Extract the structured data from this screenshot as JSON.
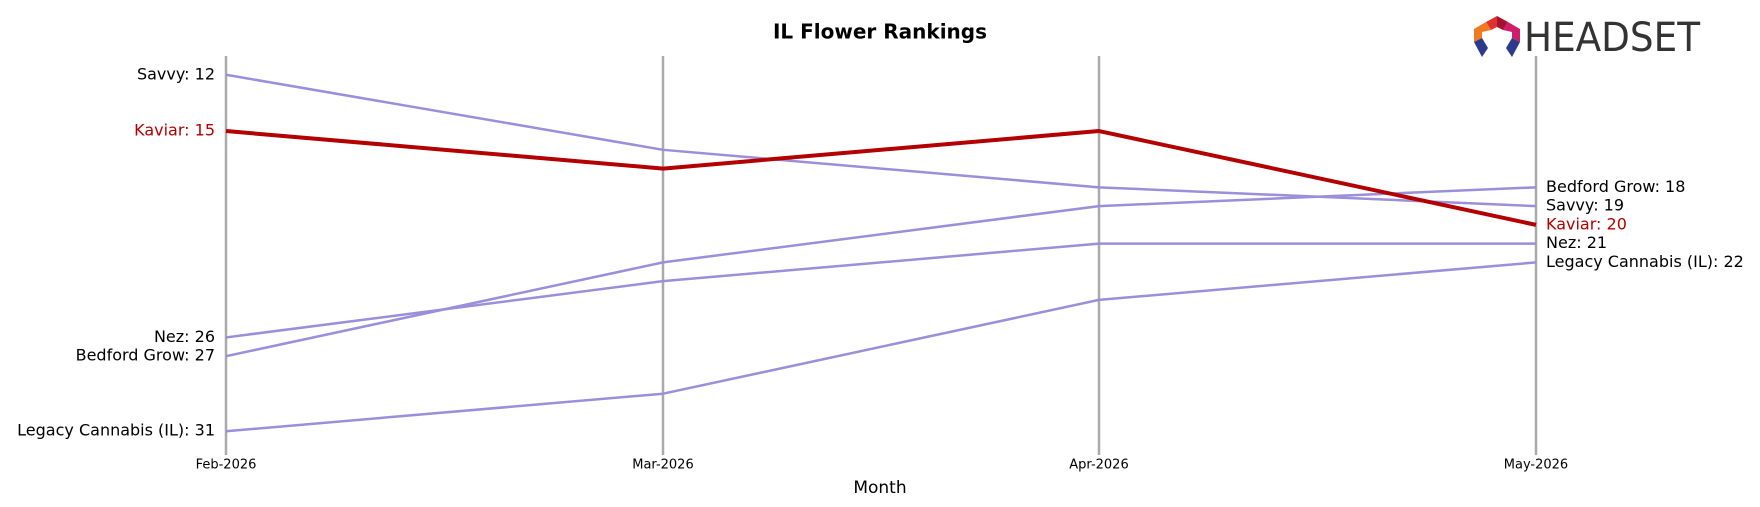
{
  "logo": "HEADSET",
  "chart_data": {
    "type": "bump",
    "title": "IL Flower Rankings",
    "x_label": "Month",
    "categories": [
      "Feb-2026",
      "Mar-2026",
      "Apr-2026",
      "May-2026"
    ],
    "ylim": [
      11,
      32
    ],
    "y_inverted": true,
    "series": [
      {
        "name": "Savvy",
        "color": "#9b8edb",
        "values": [
          12,
          16,
          18,
          19
        ],
        "value_labels": [
          "Savvy: 12",
          null,
          null,
          "Savvy: 19"
        ]
      },
      {
        "name": "Bedford Grow",
        "color": "#9b8edb",
        "values": [
          27,
          22,
          19,
          18
        ],
        "value_labels": [
          "Bedford Grow: 27",
          null,
          null,
          "Bedford Grow: 18"
        ]
      },
      {
        "name": "Nez",
        "color": "#9b8edb",
        "values": [
          26,
          23,
          21,
          21
        ],
        "value_labels": [
          "Nez: 26",
          null,
          null,
          "Nez: 21"
        ]
      },
      {
        "name": "Legacy Cannabis (IL)",
        "color": "#9b8edb",
        "values": [
          31,
          29,
          24,
          22
        ],
        "value_labels": [
          "Legacy Cannabis (IL): 31",
          null,
          null,
          "Legacy Cannabis (IL): 22"
        ]
      },
      {
        "name": "Kaviar",
        "color": "#b30000",
        "highlight": true,
        "values": [
          15,
          17,
          15,
          20
        ],
        "value_labels": [
          "Kaviar: 15",
          null,
          null,
          "Kaviar: 20"
        ]
      }
    ]
  }
}
